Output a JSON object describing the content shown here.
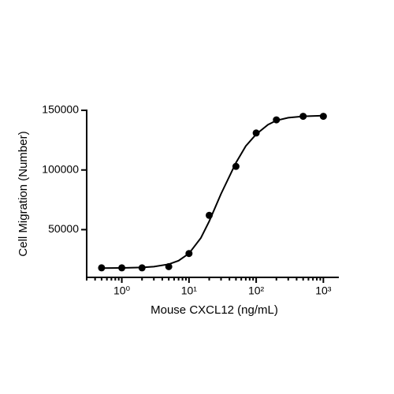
{
  "chart_data": {
    "type": "scatter",
    "xlabel": "Mouse CXCL12 (ng/mL)",
    "ylabel": "Cell Migration (Number)",
    "x": [
      0.5,
      1,
      2,
      5,
      10,
      20,
      50,
      100,
      200,
      500,
      1000
    ],
    "values": [
      18000,
      18000,
      18000,
      19000,
      30000,
      62000,
      103000,
      131000,
      142000,
      145000,
      145000
    ],
    "color": "#000000",
    "fit": {
      "x": [
        0.5,
        1,
        2,
        3,
        5,
        7,
        10,
        15,
        20,
        30,
        50,
        70,
        100,
        150,
        200,
        300,
        500,
        1000
      ],
      "values": [
        17800,
        17900,
        18300,
        19000,
        21000,
        24000,
        30000,
        43000,
        57000,
        80000,
        106000,
        120000,
        130000,
        138000,
        141500,
        143800,
        145000,
        145500
      ]
    },
    "xscale": "log",
    "xlim": [
      0.3,
      1700
    ],
    "ylim": [
      10000,
      150000
    ],
    "xticks": [
      {
        "value": 1,
        "label": "10⁰"
      },
      {
        "value": 10,
        "label": "10¹"
      },
      {
        "value": 100,
        "label": "10²"
      },
      {
        "value": 1000,
        "label": "10³"
      }
    ],
    "yticks": [
      50000,
      100000,
      150000
    ]
  }
}
